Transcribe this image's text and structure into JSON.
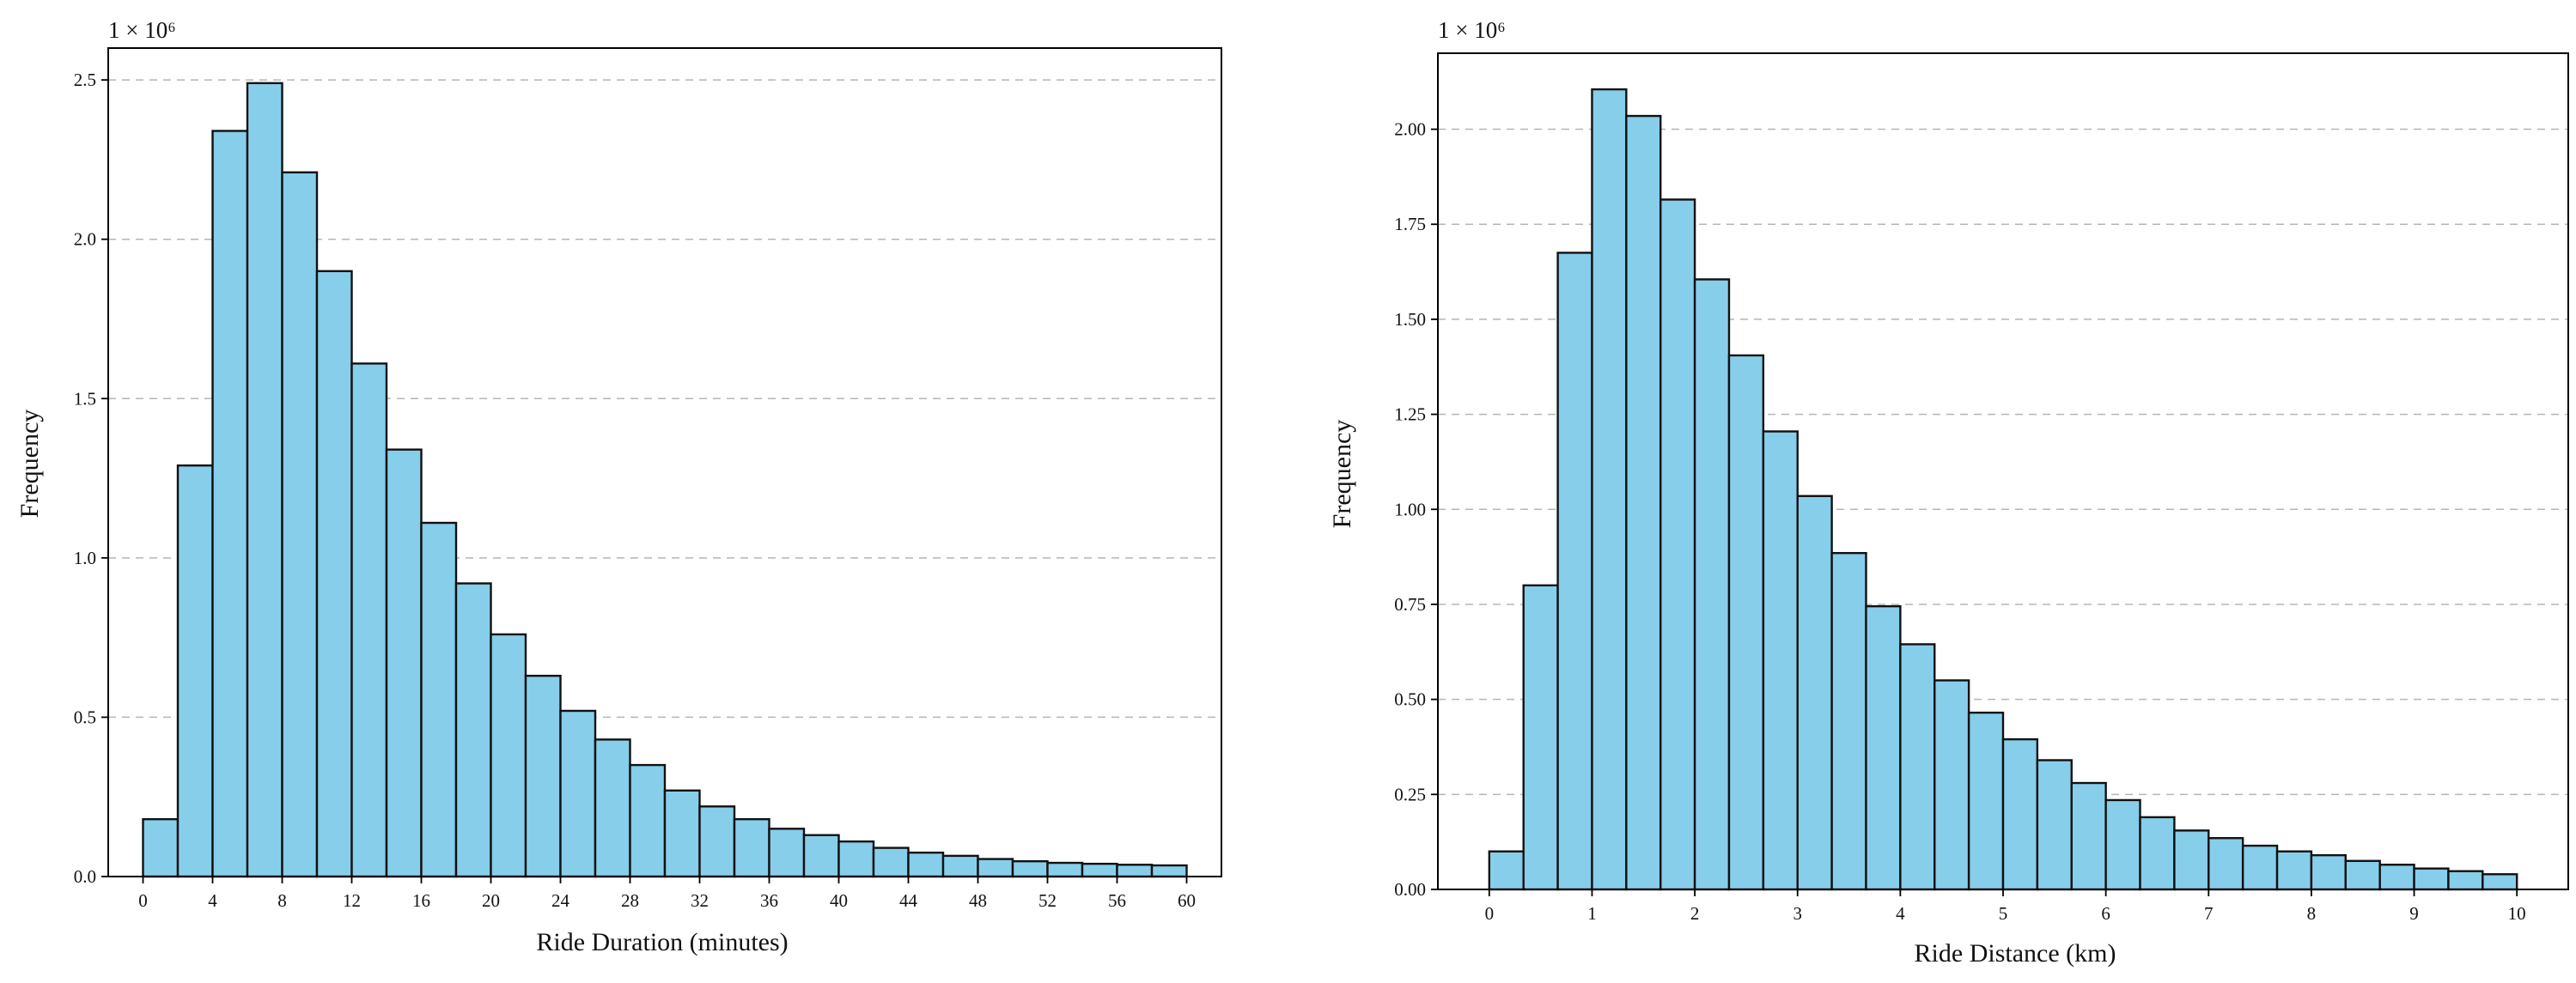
{
  "chart_data": [
    {
      "type": "bar",
      "subtype": "histogram",
      "xlabel": "Ride Duration (minutes)",
      "ylabel": "Frequency",
      "y_scale_label": "1 × 10⁶",
      "xlim": [
        -2,
        62
      ],
      "ylim": [
        0,
        2.6
      ],
      "x_ticks": [
        0,
        4,
        8,
        12,
        16,
        20,
        24,
        28,
        32,
        36,
        40,
        44,
        48,
        52,
        56,
        60
      ],
      "x_tick_labels": [
        "0",
        "4",
        "8",
        "12",
        "16",
        "20",
        "24",
        "28",
        "32",
        "36",
        "40",
        "44",
        "48",
        "52",
        "56",
        "60"
      ],
      "y_ticks": [
        0,
        0.5,
        1.0,
        1.5,
        2.0,
        2.5
      ],
      "y_tick_labels": [
        "0.0",
        "0.5",
        "1.0",
        "1.5",
        "2.0",
        "2.5"
      ],
      "grid": "horizontal dashed",
      "bin_edges": [
        0,
        2,
        4,
        6,
        8,
        10,
        12,
        14,
        16,
        18,
        20,
        22,
        24,
        26,
        28,
        30,
        32,
        34,
        36,
        38,
        40,
        42,
        44,
        46,
        48,
        50,
        52,
        54,
        56,
        58,
        60
      ],
      "values": [
        0.18,
        1.29,
        2.34,
        2.49,
        2.21,
        1.9,
        1.61,
        1.34,
        1.11,
        0.92,
        0.76,
        0.63,
        0.52,
        0.43,
        0.35,
        0.27,
        0.22,
        0.18,
        0.15,
        0.13,
        0.11,
        0.09,
        0.075,
        0.065,
        0.055,
        0.048,
        0.043,
        0.04,
        0.037,
        0.035
      ],
      "bar_color": "#87ceeb",
      "edge_color": "#111111"
    },
    {
      "type": "bar",
      "subtype": "histogram",
      "xlabel": "Ride Distance (km)",
      "ylabel": "Frequency",
      "y_scale_label": "1 × 10⁶",
      "xlim": [
        -0.5,
        10.5
      ],
      "ylim": [
        0,
        2.2
      ],
      "x_ticks": [
        0,
        1,
        2,
        3,
        4,
        5,
        6,
        7,
        8,
        9,
        10
      ],
      "x_tick_labels": [
        "0",
        "1",
        "2",
        "3",
        "4",
        "5",
        "6",
        "7",
        "8",
        "9",
        "10"
      ],
      "y_ticks": [
        0,
        0.25,
        0.5,
        0.75,
        1.0,
        1.25,
        1.5,
        1.75,
        2.0
      ],
      "y_tick_labels": [
        "0.00",
        "0.25",
        "0.50",
        "0.75",
        "1.00",
        "1.25",
        "1.50",
        "1.75",
        "2.00"
      ],
      "grid": "horizontal dashed",
      "bin_edges": [
        0,
        0.3333,
        0.6667,
        1.0,
        1.3333,
        1.6667,
        2.0,
        2.3333,
        2.6667,
        3.0,
        3.3333,
        3.6667,
        4.0,
        4.3333,
        4.6667,
        5.0,
        5.3333,
        5.6667,
        6.0,
        6.3333,
        6.6667,
        7.0,
        7.3333,
        7.6667,
        8.0,
        8.3333,
        8.6667,
        9.0,
        9.3333,
        9.6667,
        10.0
      ],
      "values": [
        0.1,
        0.8,
        1.675,
        2.105,
        2.035,
        1.815,
        1.605,
        1.405,
        1.205,
        1.035,
        0.885,
        0.745,
        0.645,
        0.55,
        0.465,
        0.395,
        0.34,
        0.28,
        0.235,
        0.19,
        0.155,
        0.135,
        0.115,
        0.1,
        0.09,
        0.075,
        0.065,
        0.055,
        0.048,
        0.04
      ],
      "bar_color": "#87ceeb",
      "edge_color": "#111111"
    }
  ]
}
